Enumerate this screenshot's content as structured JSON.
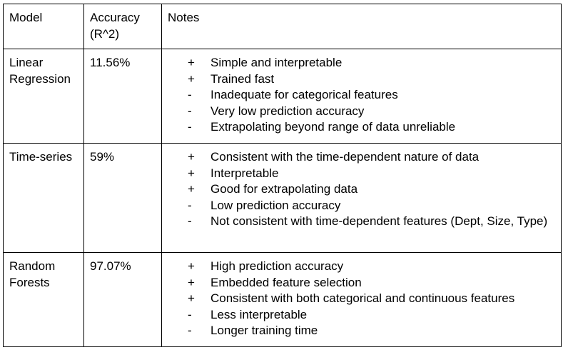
{
  "table": {
    "headers": [
      "Model",
      "Accuracy (R^2)",
      "Notes"
    ],
    "rows": [
      {
        "model": "Linear Regression",
        "accuracy": "11.56%",
        "notes": [
          {
            "sign": "+",
            "text": "Simple and interpretable"
          },
          {
            "sign": "+",
            "text": "Trained fast"
          },
          {
            "sign": "-",
            "text": "Inadequate for categorical features"
          },
          {
            "sign": "-",
            "text": "Very low prediction accuracy"
          },
          {
            "sign": "-",
            "text": "Extrapolating beyond range of data unreliable"
          }
        ]
      },
      {
        "model": "Time-series",
        "accuracy": "59%",
        "notes": [
          {
            "sign": "+",
            "text": "Consistent with the time-dependent nature of data"
          },
          {
            "sign": "+",
            "text": "Interpretable"
          },
          {
            "sign": "+",
            "text": "Good for extrapolating data"
          },
          {
            "sign": "-",
            "text": "Low prediction accuracy"
          },
          {
            "sign": "-",
            "text": "Not consistent with time-dependent features (Dept, Size, Type)"
          }
        ]
      },
      {
        "model": "Random Forests",
        "accuracy": "97.07%",
        "notes": [
          {
            "sign": "+",
            "text": "High prediction accuracy"
          },
          {
            "sign": "+",
            "text": "Embedded feature selection"
          },
          {
            "sign": "+",
            "text": "Consistent with both categorical and continuous features"
          },
          {
            "sign": "-",
            "text": "Less interpretable"
          },
          {
            "sign": "-",
            "text": "Longer training time"
          }
        ]
      }
    ]
  }
}
